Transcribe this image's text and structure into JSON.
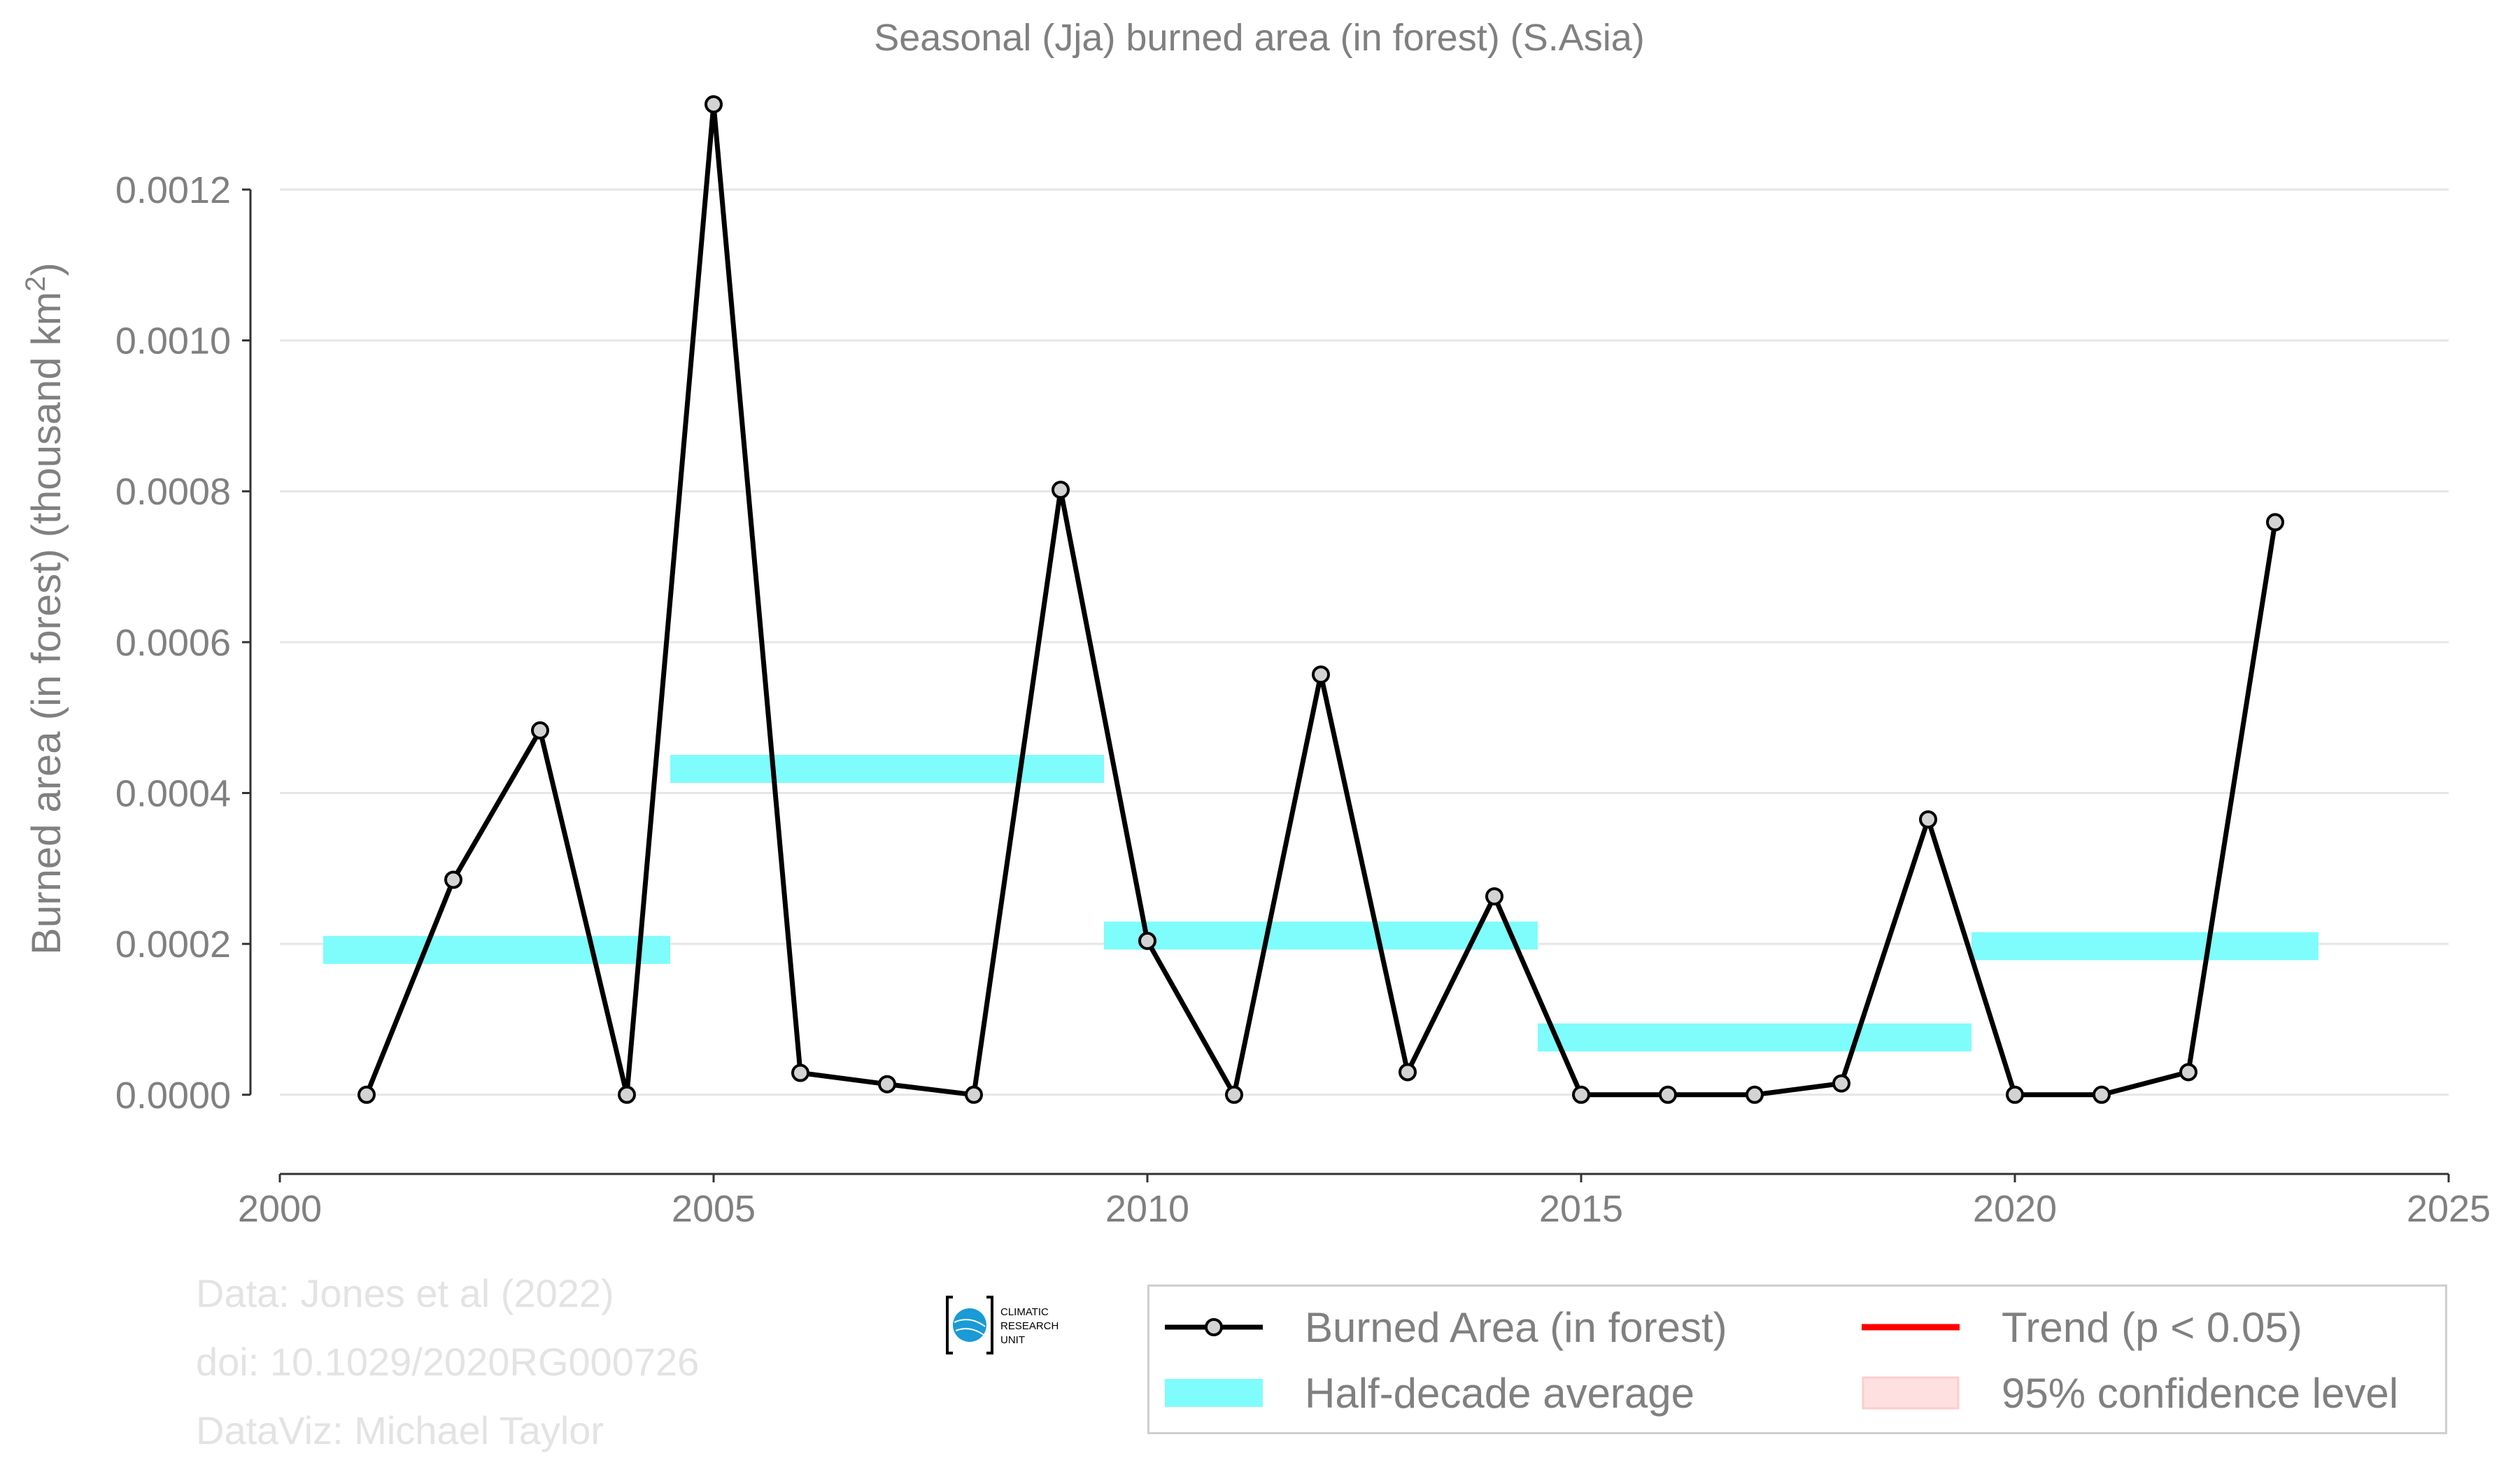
{
  "chart_data": {
    "type": "line",
    "title": "Seasonal (Jja) burned area (in forest) (S.Asia)",
    "xlabel": "",
    "ylabel": "Burned area (in forest) (thousand km",
    "ylabel_sup": "2",
    "ylabel_tail": ")",
    "xlim": [
      2000,
      2025
    ],
    "ylim": [
      -0.000105,
      0.00134
    ],
    "x_ticks": [
      2000,
      2005,
      2010,
      2015,
      2020,
      2025
    ],
    "y_ticks": [
      0.0,
      0.0002,
      0.0004,
      0.0006,
      0.0008,
      0.001,
      0.0012
    ],
    "y_tick_labels": [
      "0.0000",
      "0.0002",
      "0.0004",
      "0.0006",
      "0.0008",
      "0.0010",
      "0.0012"
    ],
    "grid": true,
    "series": [
      {
        "name": "Burned Area (in forest)",
        "color": "#000000",
        "marker_fill": "#d3d3d3",
        "x": [
          2001,
          2002,
          2003,
          2004,
          2005,
          2006,
          2007,
          2008,
          2009,
          2010,
          2011,
          2012,
          2013,
          2014,
          2015,
          2016,
          2017,
          2018,
          2019,
          2020,
          2021,
          2022,
          2023
        ],
        "values": [
          0.0,
          0.000285,
          0.000483,
          0.0,
          0.001313,
          2.9e-05,
          1.4e-05,
          0.0,
          0.000802,
          0.000204,
          0.0,
          0.000557,
          3e-05,
          0.000263,
          0.0,
          0.0,
          0.0,
          1.5e-05,
          0.000365,
          0.0,
          0.0,
          3e-05,
          0.000759
        ]
      }
    ],
    "half_decade_average": {
      "name": "Half-decade average",
      "color": "#7ffcfc",
      "segments": [
        {
          "x0": 2000.5,
          "x1": 2004.5,
          "value": 0.000192
        },
        {
          "x0": 2004.5,
          "x1": 2009.5,
          "value": 0.000432
        },
        {
          "x0": 2009.5,
          "x1": 2014.5,
          "value": 0.000211
        },
        {
          "x0": 2014.5,
          "x1": 2019.5,
          "value": 7.6e-05
        },
        {
          "x0": 2019.5,
          "x1": 2023.5,
          "value": 0.000197
        }
      ]
    },
    "legend": {
      "placement": "bottom-right",
      "entries": [
        {
          "label": "Burned Area (in forest)",
          "type": "line-marker",
          "color": "#000000"
        },
        {
          "label": "Trend (p < 0.05)",
          "type": "line",
          "color": "#ff0000"
        },
        {
          "label": "Half-decade average",
          "type": "band",
          "color": "#7ffcfc"
        },
        {
          "label": "95% confidence level",
          "type": "band",
          "color": "#ffe0e0"
        }
      ]
    }
  },
  "credits": {
    "line1": "Data: Jones et al (2022)",
    "line2": "doi: 10.1029/2020RG000726",
    "line3": "DataViz: Michael Taylor"
  },
  "logo": {
    "line1": "CLIMATIC",
    "line2": "RESEARCH",
    "line3": "UNIT",
    "color": "#1a9ad6"
  }
}
